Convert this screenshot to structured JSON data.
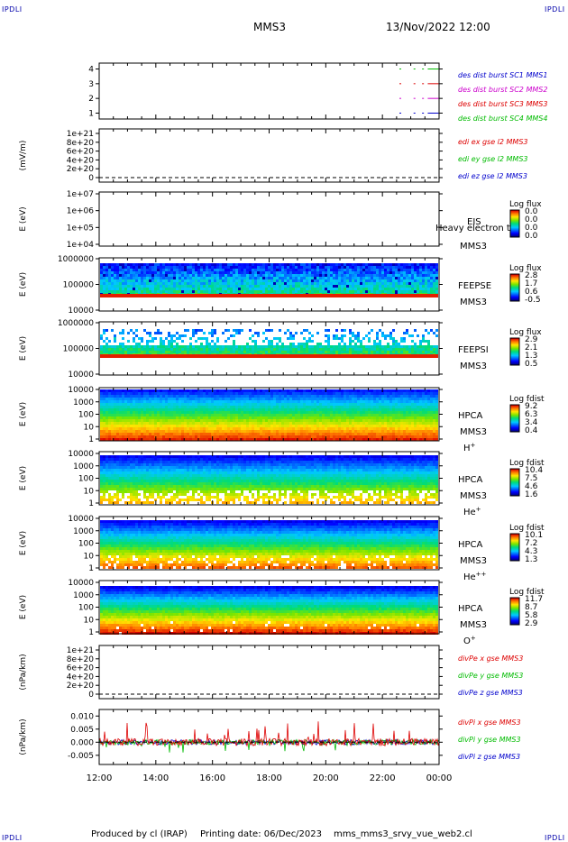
{
  "header": {
    "corner_left_top": "IPDLI",
    "corner_right_top": "IPDLI",
    "corner_left_bottom": "IPDLI",
    "corner_right_bottom": "IPDLI",
    "spacecraft": "MMS3",
    "datetime": "13/Nov/2022 12:00"
  },
  "footer": {
    "produced_by": "Produced by cl (IRAP)",
    "printing_date": "Printing date: 06/Dec/2023",
    "script": "mms_mms3_srvy_vue_web2.cl"
  },
  "colors": {
    "red": "#dd0000",
    "green": "#00bb00",
    "blue": "#0000cc",
    "magenta": "#cc00cc"
  },
  "chart_data": [
    {
      "type": "line",
      "panel": "burst",
      "yticks": [
        "1",
        "2",
        "3",
        "4"
      ],
      "ylim": [
        0.6,
        4.4
      ],
      "legend": [
        {
          "label": "des dist burst SC1 MMS1",
          "color": "#0000cc"
        },
        {
          "label": "des dist burst SC2 MMS2",
          "color": "#cc00cc"
        },
        {
          "label": "des dist burst SC3 MMS3",
          "color": "#dd0000"
        },
        {
          "label": "des dist burst SC4 MMS4",
          "color": "#00bb00"
        }
      ],
      "series": [
        {
          "name": "SC4 MMS4",
          "level": 4,
          "color": "#00bb00",
          "x": [
            22.6,
            23.1,
            23.4
          ],
          "x_end": 24.0
        },
        {
          "name": "SC3 MMS3",
          "level": 3,
          "color": "#dd0000",
          "x": [
            22.6,
            23.1,
            23.4
          ],
          "x_end": 24.0
        },
        {
          "name": "SC2 MMS2",
          "level": 2,
          "color": "#cc00cc",
          "x": [
            22.6,
            23.1,
            23.4
          ],
          "x_end": 24.0
        },
        {
          "name": "SC1 MMS1",
          "level": 1,
          "color": "#0000cc",
          "x": [
            22.6,
            23.1,
            23.4
          ],
          "x_end": 24.0
        }
      ]
    },
    {
      "type": "line",
      "panel": "edi",
      "ylabel": "(mV/m)",
      "yticks": [
        "1e+21",
        "8e+20",
        "6e+20",
        "4e+20",
        "2e+20",
        "0"
      ],
      "legend": [
        {
          "label": "edi ex gse l2 MMS3",
          "color": "#dd0000"
        },
        {
          "label": "edi ey gse l2 MMS3",
          "color": "#00bb00"
        },
        {
          "label": "edi ez gse l2 MMS3",
          "color": "#0000cc"
        }
      ]
    },
    {
      "type": "heatmap",
      "panel": "eis",
      "ylabel": "E (eV)",
      "yticks": [
        "1e+07",
        "1e+06",
        "1e+05",
        "1e+04"
      ],
      "instrument": "EIS",
      "spacecraft": "MMS3",
      "overlay": "Heavy electron to",
      "colorbar_title": "Log flux",
      "colorbar_ticks": [
        "0.0",
        "0.0",
        "0.0",
        "0.0"
      ]
    },
    {
      "type": "heatmap",
      "panel": "feepse",
      "ylabel": "E (eV)",
      "yticks": [
        "1000000",
        "100000",
        "10000"
      ],
      "instrument": "FEEPSE",
      "spacecraft": "MMS3",
      "colorbar_title": "Log flux",
      "colorbar_ticks": [
        "2.8",
        "1.7",
        "0.6",
        "-0.5"
      ]
    },
    {
      "type": "heatmap",
      "panel": "feepsi",
      "ylabel": "E (eV)",
      "yticks": [
        "1000000",
        "100000",
        "10000"
      ],
      "instrument": "FEEPSI",
      "spacecraft": "MMS3",
      "colorbar_title": "Log flux",
      "colorbar_ticks": [
        "2.9",
        "2.1",
        "1.3",
        "0.5"
      ]
    },
    {
      "type": "heatmap",
      "panel": "hpca_h",
      "ylabel": "E (eV)",
      "yticks": [
        "10000",
        "1000",
        "100",
        "10",
        "1"
      ],
      "instrument": "HPCA",
      "spacecraft": "MMS3",
      "species": "H",
      "charge": "+",
      "colorbar_title": "Log fdist",
      "colorbar_ticks": [
        "9.2",
        "6.3",
        "3.4",
        "0.4"
      ]
    },
    {
      "type": "heatmap",
      "panel": "hpca_he1",
      "ylabel": "E (eV)",
      "yticks": [
        "10000",
        "1000",
        "100",
        "10",
        "1"
      ],
      "instrument": "HPCA",
      "spacecraft": "MMS3",
      "species": "He",
      "charge": "+",
      "colorbar_title": "Log fdist",
      "colorbar_ticks": [
        "10.4",
        "7.5",
        "4.6",
        "1.6"
      ]
    },
    {
      "type": "heatmap",
      "panel": "hpca_he2",
      "ylabel": "E (eV)",
      "yticks": [
        "10000",
        "1000",
        "100",
        "10",
        "1"
      ],
      "instrument": "HPCA",
      "spacecraft": "MMS3",
      "species": "He",
      "charge": "++",
      "colorbar_title": "Log fdist",
      "colorbar_ticks": [
        "10.1",
        "7.2",
        "4.3",
        "1.3"
      ]
    },
    {
      "type": "heatmap",
      "panel": "hpca_o",
      "ylabel": "E (eV)",
      "yticks": [
        "10000",
        "1000",
        "100",
        "10",
        "1"
      ],
      "instrument": "HPCA",
      "spacecraft": "MMS3",
      "species": "O",
      "charge": "+",
      "colorbar_title": "Log fdist",
      "colorbar_ticks": [
        "11.7",
        "8.7",
        "5.8",
        "2.9"
      ]
    },
    {
      "type": "line",
      "panel": "divpe",
      "ylabel": "(nPa/km)",
      "yticks": [
        "1e+21",
        "8e+20",
        "6e+20",
        "4e+20",
        "2e+20",
        "0"
      ],
      "legend": [
        {
          "label": "divPe x gse MMS3",
          "color": "#dd0000"
        },
        {
          "label": "divPe y gse MMS3",
          "color": "#00bb00"
        },
        {
          "label": "divPe z gse MMS3",
          "color": "#0000cc"
        }
      ]
    },
    {
      "type": "line",
      "panel": "divpi",
      "ylabel": "(nPa/km)",
      "yticks": [
        "0.010",
        "0.005",
        "0.000",
        "-0.005"
      ],
      "ylim": [
        -0.0085,
        0.0125
      ],
      "legend": [
        {
          "label": "divPi x gse MMS3",
          "color": "#dd0000"
        },
        {
          "label": "divPi y gse MMS3",
          "color": "#00bb00"
        },
        {
          "label": "divPi z gse MMS3",
          "color": "#0000cc"
        }
      ]
    }
  ],
  "xaxis": {
    "ticks": [
      "12:00",
      "14:00",
      "16:00",
      "18:00",
      "20:00",
      "22:00",
      "00:00"
    ],
    "range_hours": [
      12,
      24
    ]
  }
}
